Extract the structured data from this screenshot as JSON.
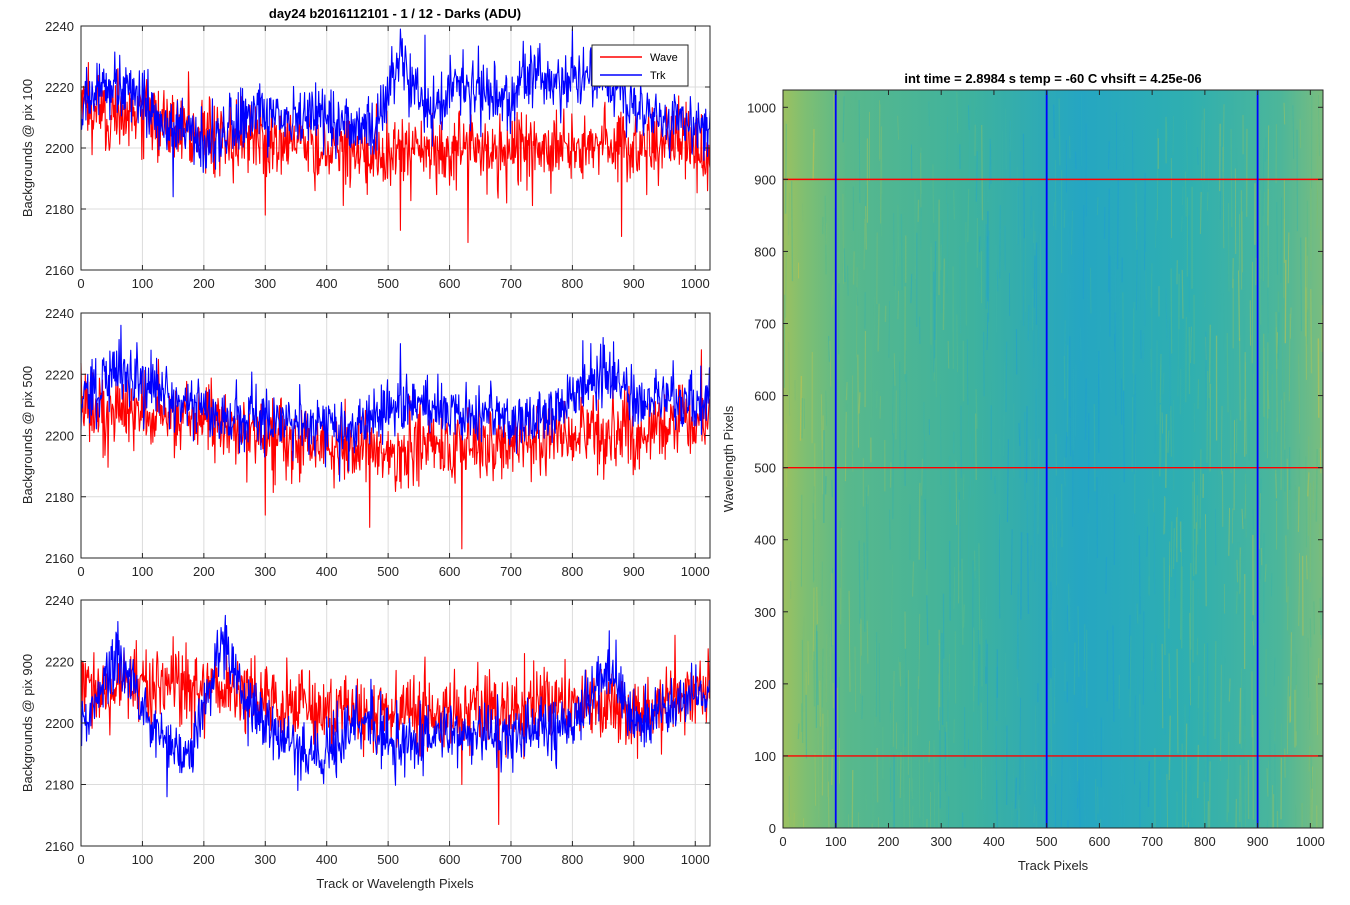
{
  "colors": {
    "wave": "#ff0000",
    "trk": "#0000ff",
    "grid": "#dcdcdc",
    "axis": "#262626",
    "image_low": "#1aa7c8",
    "image_mid": "#3fb8a0",
    "image_high": "#b8c85a"
  },
  "chart_data": [
    {
      "type": "line",
      "title": "day24 b2016112101 - 1 / 12 - Darks (ADU)",
      "ylabel": "Backgrounds @ pix 100",
      "xlabel": "",
      "xlim": [
        0,
        1024
      ],
      "ylim": [
        2160,
        2240
      ],
      "xticks": [
        0,
        100,
        200,
        300,
        400,
        500,
        600,
        700,
        800,
        900,
        1000
      ],
      "yticks": [
        2160,
        2180,
        2200,
        2220,
        2240
      ],
      "grid": true,
      "legend": {
        "position": "top-right",
        "entries": [
          "Wave",
          "Trk"
        ]
      },
      "series": [
        {
          "name": "Wave",
          "color_key": "wave",
          "mean": 2205,
          "noise": 6,
          "trend": [
            [
              0,
              2212
            ],
            [
              100,
              2210
            ],
            [
              200,
              2205
            ],
            [
              300,
              2203
            ],
            [
              400,
              2200
            ],
            [
              500,
              2198
            ],
            [
              600,
              2199
            ],
            [
              700,
              2199
            ],
            [
              800,
              2201
            ],
            [
              900,
              2200
            ],
            [
              1024,
              2200
            ]
          ],
          "extremes": [
            [
              12,
              2228
            ],
            [
              60,
              2226
            ],
            [
              175,
              2225
            ],
            [
              300,
              2178
            ],
            [
              520,
              2173
            ],
            [
              630,
              2169
            ],
            [
              880,
              2171
            ],
            [
              1020,
              2186
            ]
          ]
        },
        {
          "name": "Trk",
          "color_key": "trk",
          "mean": 2210,
          "noise": 5,
          "trend": [
            [
              0,
              2214
            ],
            [
              60,
              2222
            ],
            [
              130,
              2210
            ],
            [
              200,
              2200
            ],
            [
              280,
              2212
            ],
            [
              330,
              2208
            ],
            [
              400,
              2210
            ],
            [
              480,
              2206
            ],
            [
              520,
              2230
            ],
            [
              560,
              2210
            ],
            [
              620,
              2222
            ],
            [
              700,
              2215
            ],
            [
              720,
              2222
            ],
            [
              800,
              2222
            ],
            [
              850,
              2222
            ],
            [
              900,
              2213
            ],
            [
              1024,
              2205
            ]
          ],
          "extremes": [
            [
              150,
              2184
            ],
            [
              520,
              2239
            ],
            [
              560,
              2237
            ],
            [
              720,
              2235
            ],
            [
              800,
              2239
            ]
          ]
        }
      ]
    },
    {
      "type": "line",
      "title": "",
      "ylabel": "Backgrounds @ pix 500",
      "xlabel": "",
      "xlim": [
        0,
        1024
      ],
      "ylim": [
        2160,
        2240
      ],
      "xticks": [
        0,
        100,
        200,
        300,
        400,
        500,
        600,
        700,
        800,
        900,
        1000
      ],
      "yticks": [
        2160,
        2180,
        2200,
        2220,
        2240
      ],
      "grid": true,
      "series": [
        {
          "name": "Wave",
          "color_key": "wave",
          "mean": 2203,
          "noise": 6,
          "trend": [
            [
              0,
              2208
            ],
            [
              100,
              2208
            ],
            [
              200,
              2205
            ],
            [
              300,
              2200
            ],
            [
              400,
              2198
            ],
            [
              500,
              2195
            ],
            [
              600,
              2196
            ],
            [
              700,
              2198
            ],
            [
              800,
              2200
            ],
            [
              900,
              2200
            ],
            [
              1024,
              2205
            ]
          ],
          "extremes": [
            [
              300,
              2174
            ],
            [
              470,
              2170
            ],
            [
              620,
              2163
            ],
            [
              1010,
              2228
            ]
          ]
        },
        {
          "name": "Trk",
          "color_key": "trk",
          "mean": 2208,
          "noise": 5,
          "trend": [
            [
              0,
              2212
            ],
            [
              60,
              2222
            ],
            [
              150,
              2212
            ],
            [
              220,
              2205
            ],
            [
              300,
              2205
            ],
            [
              400,
              2205
            ],
            [
              440,
              2203
            ],
            [
              520,
              2212
            ],
            [
              600,
              2208
            ],
            [
              700,
              2205
            ],
            [
              780,
              2208
            ],
            [
              850,
              2222
            ],
            [
              900,
              2212
            ],
            [
              960,
              2210
            ],
            [
              1024,
              2212
            ]
          ],
          "extremes": [
            [
              65,
              2236
            ],
            [
              520,
              2230
            ],
            [
              850,
              2232
            ]
          ]
        }
      ]
    },
    {
      "type": "line",
      "title": "",
      "ylabel": "Backgrounds @ pix 900",
      "xlabel": "Track or Wavelength Pixels",
      "xlim": [
        0,
        1024
      ],
      "ylim": [
        2160,
        2240
      ],
      "xticks": [
        0,
        100,
        200,
        300,
        400,
        500,
        600,
        700,
        800,
        900,
        1000
      ],
      "yticks": [
        2160,
        2180,
        2200,
        2220,
        2240
      ],
      "grid": true,
      "series": [
        {
          "name": "Wave",
          "color_key": "wave",
          "mean": 2207,
          "noise": 6,
          "trend": [
            [
              0,
              2212
            ],
            [
              100,
              2212
            ],
            [
              200,
              2212
            ],
            [
              300,
              2207
            ],
            [
              400,
              2203
            ],
            [
              500,
              2203
            ],
            [
              600,
              2203
            ],
            [
              700,
              2205
            ],
            [
              800,
              2207
            ],
            [
              900,
              2205
            ],
            [
              1024,
              2210
            ]
          ],
          "extremes": [
            [
              680,
              2167
            ],
            [
              620,
              2180
            ]
          ]
        },
        {
          "name": "Trk",
          "color_key": "trk",
          "mean": 2202,
          "noise": 5,
          "trend": [
            [
              0,
              2197
            ],
            [
              60,
              2222
            ],
            [
              110,
              2200
            ],
            [
              170,
              2188
            ],
            [
              230,
              2225
            ],
            [
              270,
              2205
            ],
            [
              350,
              2192
            ],
            [
              400,
              2190
            ],
            [
              460,
              2202
            ],
            [
              520,
              2192
            ],
            [
              600,
              2197
            ],
            [
              700,
              2197
            ],
            [
              800,
              2200
            ],
            [
              860,
              2218
            ],
            [
              900,
              2200
            ],
            [
              1024,
              2210
            ]
          ],
          "extremes": [
            [
              60,
              2233
            ],
            [
              235,
              2235
            ],
            [
              860,
              2230
            ],
            [
              140,
              2176
            ]
          ]
        }
      ]
    },
    {
      "type": "heatmap",
      "title": "int time = 2.8984 s    temp = -60 C    vhsift = 4.25e-06",
      "xlabel": "Track Pixels",
      "ylabel": "Wavelength Pixels",
      "xlim": [
        0,
        1024
      ],
      "ylim": [
        0,
        1024
      ],
      "xticks": [
        0,
        100,
        200,
        300,
        400,
        500,
        600,
        700,
        800,
        900,
        1000
      ],
      "yticks": [
        0,
        100,
        200,
        300,
        400,
        500,
        600,
        700,
        800,
        900,
        1000
      ],
      "colormap": "parula",
      "vertical_markers": {
        "color_key": "trk",
        "x": [
          100,
          500,
          900
        ]
      },
      "horizontal_markers": {
        "color_key": "wave",
        "y": [
          100,
          500,
          900
        ]
      }
    }
  ]
}
